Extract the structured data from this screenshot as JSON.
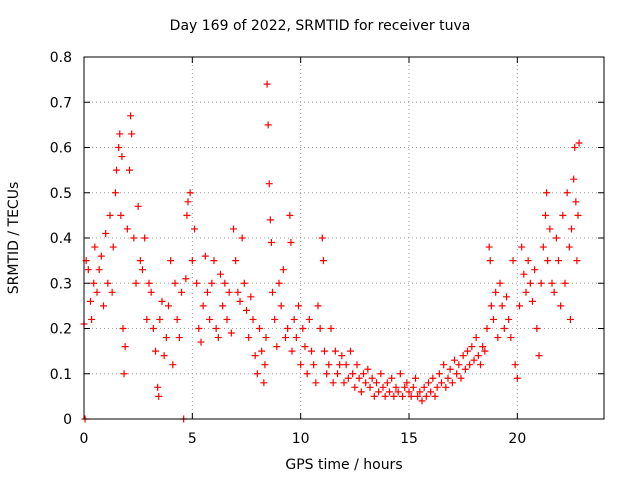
{
  "chart_data": {
    "type": "scatter",
    "title": "Day 169 of 2022, SRMTID for receiver tuva",
    "xlabel": "GPS time / hours",
    "ylabel": "SRMTID / TECUs",
    "xlim": [
      0,
      24
    ],
    "ylim": [
      0,
      0.8
    ],
    "xticks": [
      0,
      5,
      10,
      15,
      20
    ],
    "yticks": [
      0,
      0.1,
      0.2,
      0.3,
      0.4,
      0.5,
      0.6,
      0.7,
      0.8
    ],
    "xtick_labels": [
      "0",
      "5",
      "10",
      "15",
      "20"
    ],
    "ytick_labels": [
      "0",
      "0.1",
      "0.2",
      "0.3",
      "0.4",
      "0.5",
      "0.6",
      "0.7",
      "0.8"
    ],
    "grid": true,
    "marker": "plus",
    "color": "#ff0000",
    "series": [
      {
        "name": "SRMTID",
        "points": [
          [
            0.0,
            0.21
          ],
          [
            0.05,
            0.0
          ],
          [
            0.1,
            0.35
          ],
          [
            0.2,
            0.33
          ],
          [
            0.3,
            0.26
          ],
          [
            0.35,
            0.22
          ],
          [
            0.45,
            0.3
          ],
          [
            0.5,
            0.38
          ],
          [
            0.6,
            0.28
          ],
          [
            0.7,
            0.33
          ],
          [
            0.8,
            0.36
          ],
          [
            0.9,
            0.25
          ],
          [
            1.0,
            0.41
          ],
          [
            1.1,
            0.3
          ],
          [
            1.2,
            0.45
          ],
          [
            1.3,
            0.28
          ],
          [
            1.35,
            0.38
          ],
          [
            1.45,
            0.5
          ],
          [
            1.5,
            0.55
          ],
          [
            1.6,
            0.6
          ],
          [
            1.65,
            0.63
          ],
          [
            1.7,
            0.45
          ],
          [
            1.75,
            0.58
          ],
          [
            1.8,
            0.2
          ],
          [
            1.85,
            0.1
          ],
          [
            1.9,
            0.16
          ],
          [
            2.0,
            0.42
          ],
          [
            2.1,
            0.55
          ],
          [
            2.15,
            0.67
          ],
          [
            2.2,
            0.63
          ],
          [
            2.3,
            0.4
          ],
          [
            2.4,
            0.3
          ],
          [
            2.5,
            0.47
          ],
          [
            2.6,
            0.35
          ],
          [
            2.7,
            0.33
          ],
          [
            2.8,
            0.4
          ],
          [
            2.9,
            0.22
          ],
          [
            3.0,
            0.3
          ],
          [
            3.1,
            0.28
          ],
          [
            3.2,
            0.2
          ],
          [
            3.3,
            0.15
          ],
          [
            3.4,
            0.07
          ],
          [
            3.45,
            0.05
          ],
          [
            3.5,
            0.22
          ],
          [
            3.6,
            0.26
          ],
          [
            3.7,
            0.14
          ],
          [
            3.8,
            0.18
          ],
          [
            3.9,
            0.25
          ],
          [
            4.0,
            0.35
          ],
          [
            4.1,
            0.12
          ],
          [
            4.2,
            0.3
          ],
          [
            4.3,
            0.22
          ],
          [
            4.4,
            0.18
          ],
          [
            4.5,
            0.28
          ],
          [
            4.6,
            0.0
          ],
          [
            4.7,
            0.31
          ],
          [
            4.75,
            0.45
          ],
          [
            4.8,
            0.48
          ],
          [
            4.9,
            0.5
          ],
          [
            5.0,
            0.35
          ],
          [
            5.1,
            0.42
          ],
          [
            5.2,
            0.3
          ],
          [
            5.3,
            0.2
          ],
          [
            5.4,
            0.17
          ],
          [
            5.5,
            0.25
          ],
          [
            5.6,
            0.36
          ],
          [
            5.7,
            0.28
          ],
          [
            5.8,
            0.22
          ],
          [
            5.9,
            0.3
          ],
          [
            6.0,
            0.35
          ],
          [
            6.1,
            0.2
          ],
          [
            6.2,
            0.18
          ],
          [
            6.3,
            0.32
          ],
          [
            6.4,
            0.25
          ],
          [
            6.5,
            0.3
          ],
          [
            6.6,
            0.22
          ],
          [
            6.7,
            0.28
          ],
          [
            6.8,
            0.19
          ],
          [
            6.9,
            0.42
          ],
          [
            7.0,
            0.35
          ],
          [
            7.1,
            0.28
          ],
          [
            7.2,
            0.26
          ],
          [
            7.3,
            0.4
          ],
          [
            7.4,
            0.3
          ],
          [
            7.5,
            0.24
          ],
          [
            7.6,
            0.18
          ],
          [
            7.7,
            0.27
          ],
          [
            7.8,
            0.22
          ],
          [
            7.9,
            0.14
          ],
          [
            8.0,
            0.1
          ],
          [
            8.1,
            0.2
          ],
          [
            8.2,
            0.15
          ],
          [
            8.3,
            0.08
          ],
          [
            8.35,
            0.12
          ],
          [
            8.4,
            0.18
          ],
          [
            8.45,
            0.74
          ],
          [
            8.5,
            0.65
          ],
          [
            8.55,
            0.52
          ],
          [
            8.6,
            0.44
          ],
          [
            8.65,
            0.39
          ],
          [
            8.7,
            0.28
          ],
          [
            8.8,
            0.22
          ],
          [
            8.9,
            0.16
          ],
          [
            9.0,
            0.3
          ],
          [
            9.1,
            0.25
          ],
          [
            9.2,
            0.33
          ],
          [
            9.3,
            0.18
          ],
          [
            9.4,
            0.2
          ],
          [
            9.5,
            0.45
          ],
          [
            9.55,
            0.39
          ],
          [
            9.6,
            0.15
          ],
          [
            9.7,
            0.22
          ],
          [
            9.8,
            0.18
          ],
          [
            9.9,
            0.25
          ],
          [
            10.0,
            0.12
          ],
          [
            10.1,
            0.2
          ],
          [
            10.2,
            0.16
          ],
          [
            10.3,
            0.1
          ],
          [
            10.4,
            0.22
          ],
          [
            10.5,
            0.15
          ],
          [
            10.6,
            0.12
          ],
          [
            10.7,
            0.08
          ],
          [
            10.8,
            0.25
          ],
          [
            10.9,
            0.2
          ],
          [
            11.0,
            0.4
          ],
          [
            11.05,
            0.35
          ],
          [
            11.1,
            0.15
          ],
          [
            11.2,
            0.1
          ],
          [
            11.3,
            0.12
          ],
          [
            11.4,
            0.2
          ],
          [
            11.5,
            0.08
          ],
          [
            11.6,
            0.15
          ],
          [
            11.7,
            0.1
          ],
          [
            11.8,
            0.12
          ],
          [
            11.9,
            0.14
          ],
          [
            12.0,
            0.08
          ],
          [
            12.1,
            0.12
          ],
          [
            12.2,
            0.09
          ],
          [
            12.3,
            0.15
          ],
          [
            12.4,
            0.1
          ],
          [
            12.5,
            0.07
          ],
          [
            12.6,
            0.12
          ],
          [
            12.7,
            0.09
          ],
          [
            12.8,
            0.06
          ],
          [
            12.9,
            0.1
          ],
          [
            13.0,
            0.08
          ],
          [
            13.1,
            0.11
          ],
          [
            13.2,
            0.07
          ],
          [
            13.3,
            0.09
          ],
          [
            13.4,
            0.05
          ],
          [
            13.5,
            0.08
          ],
          [
            13.6,
            0.06
          ],
          [
            13.7,
            0.1
          ],
          [
            13.8,
            0.07
          ],
          [
            13.9,
            0.05
          ],
          [
            14.0,
            0.08
          ],
          [
            14.1,
            0.06
          ],
          [
            14.2,
            0.09
          ],
          [
            14.3,
            0.05
          ],
          [
            14.4,
            0.07
          ],
          [
            14.5,
            0.06
          ],
          [
            14.6,
            0.1
          ],
          [
            14.7,
            0.05
          ],
          [
            14.8,
            0.07
          ],
          [
            14.9,
            0.08
          ],
          [
            15.0,
            0.06
          ],
          [
            15.1,
            0.05
          ],
          [
            15.2,
            0.07
          ],
          [
            15.3,
            0.09
          ],
          [
            15.4,
            0.05
          ],
          [
            15.5,
            0.06
          ],
          [
            15.6,
            0.04
          ],
          [
            15.7,
            0.07
          ],
          [
            15.8,
            0.05
          ],
          [
            15.9,
            0.08
          ],
          [
            16.0,
            0.06
          ],
          [
            16.1,
            0.09
          ],
          [
            16.2,
            0.05
          ],
          [
            16.3,
            0.07
          ],
          [
            16.4,
            0.1
          ],
          [
            16.5,
            0.08
          ],
          [
            16.6,
            0.12
          ],
          [
            16.7,
            0.07
          ],
          [
            16.8,
            0.09
          ],
          [
            16.9,
            0.11
          ],
          [
            17.0,
            0.08
          ],
          [
            17.1,
            0.13
          ],
          [
            17.2,
            0.1
          ],
          [
            17.3,
            0.12
          ],
          [
            17.4,
            0.09
          ],
          [
            17.5,
            0.14
          ],
          [
            17.6,
            0.11
          ],
          [
            17.7,
            0.15
          ],
          [
            17.8,
            0.12
          ],
          [
            17.9,
            0.16
          ],
          [
            18.0,
            0.13
          ],
          [
            18.1,
            0.18
          ],
          [
            18.2,
            0.14
          ],
          [
            18.3,
            0.12
          ],
          [
            18.4,
            0.16
          ],
          [
            18.5,
            0.15
          ],
          [
            18.6,
            0.2
          ],
          [
            18.7,
            0.38
          ],
          [
            18.75,
            0.35
          ],
          [
            18.8,
            0.25
          ],
          [
            18.9,
            0.22
          ],
          [
            19.0,
            0.28
          ],
          [
            19.1,
            0.18
          ],
          [
            19.2,
            0.3
          ],
          [
            19.3,
            0.25
          ],
          [
            19.4,
            0.2
          ],
          [
            19.5,
            0.27
          ],
          [
            19.6,
            0.22
          ],
          [
            19.7,
            0.18
          ],
          [
            19.8,
            0.35
          ],
          [
            19.9,
            0.12
          ],
          [
            20.0,
            0.09
          ],
          [
            20.1,
            0.25
          ],
          [
            20.2,
            0.38
          ],
          [
            20.3,
            0.32
          ],
          [
            20.4,
            0.28
          ],
          [
            20.5,
            0.35
          ],
          [
            20.6,
            0.3
          ],
          [
            20.7,
            0.26
          ],
          [
            20.8,
            0.33
          ],
          [
            20.9,
            0.2
          ],
          [
            21.0,
            0.14
          ],
          [
            21.1,
            0.3
          ],
          [
            21.2,
            0.38
          ],
          [
            21.3,
            0.45
          ],
          [
            21.35,
            0.5
          ],
          [
            21.4,
            0.35
          ],
          [
            21.5,
            0.42
          ],
          [
            21.6,
            0.3
          ],
          [
            21.7,
            0.28
          ],
          [
            21.8,
            0.4
          ],
          [
            21.9,
            0.35
          ],
          [
            22.0,
            0.25
          ],
          [
            22.1,
            0.45
          ],
          [
            22.2,
            0.3
          ],
          [
            22.3,
            0.5
          ],
          [
            22.4,
            0.38
          ],
          [
            22.45,
            0.22
          ],
          [
            22.5,
            0.42
          ],
          [
            22.6,
            0.53
          ],
          [
            22.65,
            0.6
          ],
          [
            22.7,
            0.48
          ],
          [
            22.75,
            0.35
          ],
          [
            22.8,
            0.45
          ],
          [
            22.85,
            0.61
          ]
        ]
      }
    ]
  }
}
